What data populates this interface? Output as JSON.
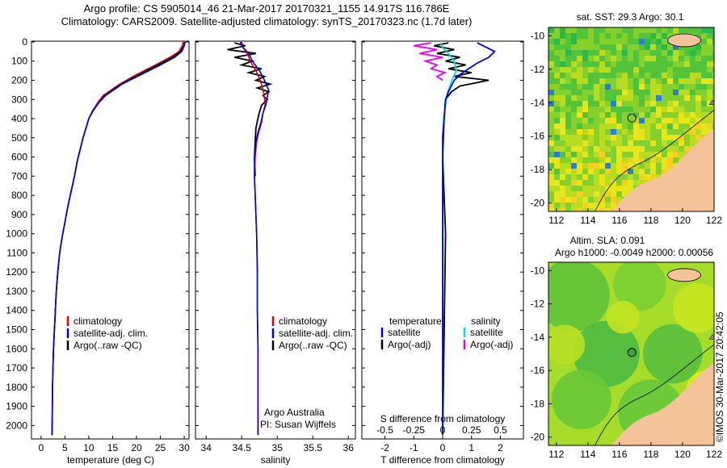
{
  "header": {
    "line1": "Argo profile: CS 5905014_46 21-Mar-2017 20170321_1155 14.917S 116.786E",
    "line2": "Climatology: CARS2009. Satellite-adjusted climatology: synTS_20170323.nc (1.7d later)"
  },
  "panels": {
    "temperature": {
      "xlabel": "temperature (deg C)",
      "xticks": [
        "0",
        "5",
        "10",
        "15",
        "20",
        "25",
        "30"
      ],
      "legend": [
        "climatology",
        "satellite-adj. clim.",
        "Argo(..raw -QC)"
      ]
    },
    "salinity": {
      "xlabel": "salinity",
      "xticks": [
        "34",
        "34.5",
        "35",
        "35.5",
        "36"
      ],
      "legend": [
        "climatology",
        "satellite-adj. clim.",
        "Argo(..raw -QC)"
      ],
      "credit1": "Argo Australia",
      "credit2": "PI: Susan Wijffels"
    },
    "difference": {
      "xlabel": "T difference from climatology",
      "top_label": "S difference from climatology",
      "s_ticks": [
        "-0.5",
        "-0.25",
        "0",
        "0.25",
        "0.5"
      ],
      "t_ticks": [
        "-2",
        "-1",
        "0",
        "1",
        "2"
      ],
      "legend_left_title": "temperature",
      "legend_left": [
        "satellite",
        "Argo(-adj)"
      ],
      "legend_right_title": "salinity",
      "legend_right": [
        "satellite",
        "Argo(-adj)"
      ]
    }
  },
  "depth_ticks": [
    "0",
    "100",
    "200",
    "300",
    "400",
    "500",
    "600",
    "700",
    "800",
    "900",
    "1000",
    "1100",
    "1200",
    "1300",
    "1400",
    "1500",
    "1600",
    "1700",
    "1800",
    "1900",
    "2000"
  ],
  "maps": {
    "sst": {
      "title": "sat. SST: 29.3 Argo: 30.1"
    },
    "sla": {
      "title1": "Altim. SLA: 0.091",
      "title2": "Argo h1000: -0.0049 h2000: 0.00056"
    },
    "lat_ticks": [
      "-10",
      "-12",
      "-14",
      "-16",
      "-18",
      "-20"
    ],
    "lon_ticks": [
      "112",
      "114",
      "116",
      "118",
      "120",
      "122"
    ]
  },
  "stamp": "©IMOS 30-Mar-2017 20:42:05",
  "colors": {
    "climatology": "#dd0000",
    "satellite": "#0000dd",
    "argo": "#000000",
    "sal_satellite": "#00dddd",
    "sal_argo": "#ee00ee",
    "land": "#f4c39a"
  },
  "chart_data": [
    {
      "type": "line",
      "xlabel": "temperature (deg C)",
      "ylabel": "",
      "xlim": [
        -2,
        31
      ],
      "ylim": [
        2070,
        0
      ],
      "series": [
        {
          "name": "climatology",
          "x": [
            29.8,
            29.6,
            28.9,
            27.0,
            24.0,
            20.0,
            16.5,
            13.0,
            11.8,
            10.8,
            10.0,
            9.4,
            8.8,
            8.2,
            7.6,
            7.0,
            6.3,
            5.6,
            5.0,
            4.4,
            3.9,
            3.5,
            3.2,
            3.0,
            2.8,
            2.6,
            2.5,
            2.4,
            2.35,
            2.3
          ],
          "y": [
            0,
            20,
            50,
            80,
            120,
            170,
            220,
            280,
            320,
            360,
            400,
            450,
            500,
            560,
            620,
            700,
            780,
            860,
            940,
            1020,
            1100,
            1200,
            1300,
            1400,
            1500,
            1600,
            1700,
            1800,
            1950,
            2050
          ]
        },
        {
          "name": "satellite-adj. clim.",
          "x": [
            30.2,
            30.0,
            29.5,
            28.0,
            25.0,
            21.0,
            17.0,
            13.5,
            12.0,
            10.8,
            10.0,
            9.4,
            8.8,
            8.2,
            7.6,
            7.0,
            6.3,
            5.6,
            5.0,
            4.4,
            3.9,
            3.5,
            3.2,
            3.0,
            2.8,
            2.6,
            2.5,
            2.4,
            2.35,
            2.3
          ],
          "y": [
            0,
            20,
            50,
            80,
            120,
            170,
            220,
            280,
            320,
            360,
            400,
            450,
            500,
            560,
            620,
            700,
            780,
            860,
            940,
            1020,
            1100,
            1200,
            1300,
            1400,
            1500,
            1600,
            1700,
            1800,
            1950,
            2050
          ]
        },
        {
          "name": "Argo(..raw -QC)",
          "x": [
            30.1,
            29.9,
            29.2,
            27.5,
            24.5,
            20.5,
            16.8,
            13.3,
            12.0,
            10.9,
            10.0,
            9.4,
            8.8,
            8.2,
            7.6,
            7.0,
            6.3,
            5.6,
            5.0,
            4.4,
            3.9,
            3.5,
            3.2,
            3.0,
            2.8,
            2.6,
            2.5,
            2.4,
            2.35,
            2.3
          ],
          "y": [
            0,
            20,
            50,
            80,
            120,
            170,
            220,
            280,
            320,
            360,
            400,
            450,
            500,
            560,
            620,
            700,
            780,
            860,
            940,
            1020,
            1100,
            1200,
            1300,
            1400,
            1500,
            1600,
            1700,
            1800,
            1950,
            2050
          ]
        }
      ]
    },
    {
      "type": "line",
      "xlabel": "salinity",
      "ylabel": "",
      "xlim": [
        33.85,
        36.1
      ],
      "ylim": [
        2070,
        0
      ],
      "series": [
        {
          "name": "climatology",
          "x": [
            34.5,
            34.52,
            34.58,
            34.62,
            34.7,
            34.76,
            34.8,
            34.82,
            34.83,
            34.8,
            34.78,
            34.74,
            34.71,
            34.69,
            34.68,
            34.69,
            34.7,
            34.71,
            34.72,
            34.72,
            34.73,
            34.73,
            34.73
          ],
          "y": [
            0,
            30,
            60,
            100,
            150,
            200,
            250,
            290,
            330,
            370,
            420,
            470,
            520,
            600,
            700,
            800,
            900,
            1000,
            1200,
            1400,
            1600,
            1800,
            2050
          ]
        },
        {
          "name": "satellite-adj. clim.",
          "x": [
            34.48,
            34.52,
            34.6,
            34.65,
            34.75,
            34.82,
            34.88,
            34.86,
            34.84,
            34.8,
            34.77,
            34.73,
            34.7,
            34.68,
            34.68,
            34.69,
            34.7,
            34.71,
            34.72,
            34.72,
            34.73,
            34.73,
            34.73
          ],
          "y": [
            0,
            30,
            60,
            100,
            150,
            200,
            250,
            290,
            330,
            370,
            420,
            470,
            520,
            600,
            700,
            800,
            900,
            1000,
            1200,
            1400,
            1600,
            1800,
            2050
          ]
        },
        {
          "name": "Argo(..raw -QC)",
          "x": [
            34.4,
            34.55,
            34.3,
            34.7,
            34.4,
            34.65,
            34.5,
            34.78,
            34.6,
            34.82,
            34.7,
            34.9,
            34.72,
            34.88,
            34.8,
            34.86,
            34.78,
            34.74,
            34.7,
            34.69,
            34.68,
            34.69
          ],
          "y": [
            5,
            20,
            40,
            60,
            80,
            100,
            120,
            140,
            160,
            180,
            200,
            220,
            240,
            260,
            280,
            300,
            330,
            380,
            450,
            520,
            600,
            700
          ]
        }
      ]
    },
    {
      "type": "line",
      "xlabel": "T difference from climatology",
      "ylabel": "",
      "xlim": [
        -2.8,
        2.8
      ],
      "ylim": [
        2070,
        0
      ],
      "series": [
        {
          "name": "satellite",
          "x": [
            1.2,
            1.4,
            1.8,
            1.6,
            1.2,
            0.9,
            0.6,
            0.4,
            0.3,
            0.2,
            0.1,
            0.05,
            0.0,
            0.0,
            0.0
          ],
          "y": [
            5,
            20,
            50,
            80,
            110,
            140,
            170,
            200,
            230,
            260,
            300,
            400,
            500,
            800,
            2050
          ]
        },
        {
          "name": "Argo(-adj)",
          "x": [
            0.2,
            -0.3,
            0.4,
            -0.2,
            0.6,
            0.1,
            0.8,
            0.2,
            1.0,
            0.4,
            1.6,
            0.6,
            0.3,
            0.1,
            0.05,
            0.0,
            0.1,
            0.0
          ],
          "y": [
            5,
            20,
            40,
            60,
            80,
            100,
            120,
            140,
            160,
            180,
            200,
            230,
            260,
            300,
            400,
            600,
            1000,
            2050
          ]
        }
      ]
    },
    {
      "type": "line",
      "xlabel": "S difference from climatology",
      "ylabel": "",
      "xlim": [
        -0.7,
        0.7
      ],
      "ylim": [
        2070,
        0
      ],
      "series": [
        {
          "name": "satellite",
          "x": [
            -0.02,
            0.0,
            0.05,
            0.1,
            0.12,
            0.08,
            0.05,
            0.03,
            0.02,
            0.01,
            0.0,
            0.0
          ],
          "y": [
            5,
            30,
            60,
            100,
            150,
            200,
            250,
            300,
            350,
            400,
            500,
            2050
          ]
        },
        {
          "name": "Argo(-adj)",
          "x": [
            -0.1,
            -0.25,
            -0.05,
            -0.2,
            0.0,
            -0.15,
            -0.05,
            -0.1,
            0.02,
            -0.05,
            0.0
          ],
          "y": [
            5,
            20,
            40,
            60,
            80,
            100,
            120,
            140,
            160,
            180,
            200
          ]
        }
      ]
    }
  ]
}
